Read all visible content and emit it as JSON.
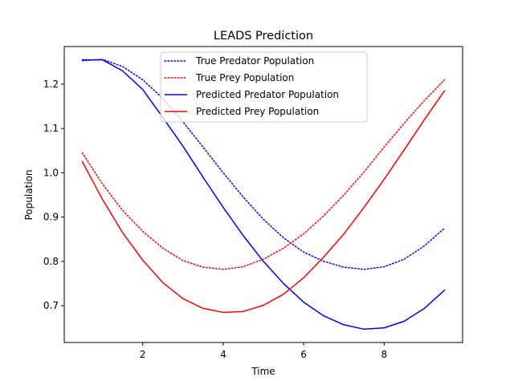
{
  "chart_data": {
    "type": "line",
    "title": "LEADS Prediction",
    "xlabel": "Time",
    "ylabel": "Population",
    "xlim": [
      0.05,
      9.95
    ],
    "ylim": [
      0.617,
      1.285
    ],
    "xticks": [
      2,
      4,
      6,
      8
    ],
    "yticks": [
      0.7,
      0.8,
      0.9,
      1.0,
      1.1,
      1.2
    ],
    "grid": false,
    "legend_position": "top-center",
    "x": [
      0.5,
      1.0,
      1.5,
      2.0,
      2.5,
      3.0,
      3.5,
      4.0,
      4.5,
      5.0,
      5.5,
      6.0,
      6.5,
      7.0,
      7.5,
      8.0,
      8.5,
      9.0,
      9.5
    ],
    "series": [
      {
        "name": "True Predator Population",
        "color": "#0000ff",
        "style": "dotted",
        "values": [
          1.253,
          1.256,
          1.24,
          1.21,
          1.168,
          1.115,
          1.058,
          1.0,
          0.945,
          0.895,
          0.853,
          0.821,
          0.8,
          0.787,
          0.782,
          0.788,
          0.805,
          0.835,
          0.875
        ]
      },
      {
        "name": "True Prey Population",
        "color": "#ff0000",
        "style": "dotted",
        "values": [
          1.045,
          0.975,
          0.915,
          0.868,
          0.83,
          0.802,
          0.787,
          0.782,
          0.788,
          0.805,
          0.83,
          0.862,
          0.903,
          0.95,
          1.002,
          1.058,
          1.112,
          1.163,
          1.21
        ]
      },
      {
        "name": "Predicted Predator Population",
        "color": "#0000ff",
        "style": "solid",
        "values": [
          1.255,
          1.255,
          1.23,
          1.188,
          1.125,
          1.06,
          0.99,
          0.922,
          0.858,
          0.8,
          0.75,
          0.708,
          0.677,
          0.657,
          0.647,
          0.65,
          0.665,
          0.694,
          0.735
        ]
      },
      {
        "name": "Predicted Prey Population",
        "color": "#ff0000",
        "style": "solid",
        "values": [
          1.025,
          0.94,
          0.865,
          0.803,
          0.752,
          0.716,
          0.694,
          0.685,
          0.687,
          0.701,
          0.726,
          0.763,
          0.81,
          0.862,
          0.922,
          0.985,
          1.052,
          1.12,
          1.185
        ]
      }
    ]
  }
}
